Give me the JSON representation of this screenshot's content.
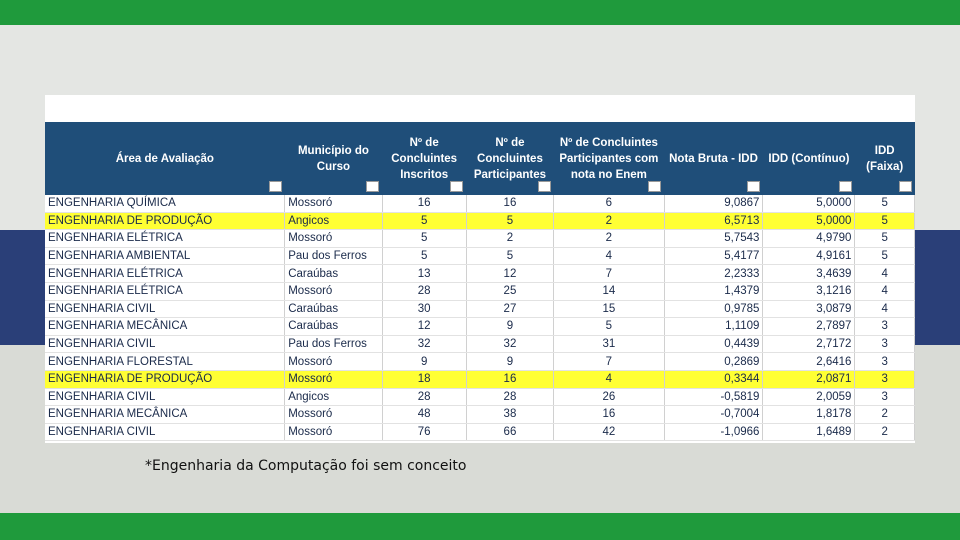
{
  "table": {
    "columns": [
      "Área de Avaliação",
      "Município do\nCurso",
      "Nº de\nConcluintes\nInscritos",
      "Nº de\nConcluintes\nParticipantes",
      "Nº de Concluintes\nParticipantes com\nnota no Enem",
      "Nota Bruta - IDD",
      "IDD (Contínuo)",
      "IDD\n(Faixa)"
    ],
    "rows": [
      [
        "ENGENHARIA QUÍMICA",
        "Mossoró",
        "16",
        "16",
        "6",
        "9,0867",
        "5,0000",
        "5"
      ],
      [
        "ENGENHARIA DE PRODUÇÃO",
        "Angicos",
        "5",
        "5",
        "2",
        "6,5713",
        "5,0000",
        "5"
      ],
      [
        "ENGENHARIA ELÉTRICA",
        "Mossoró",
        "5",
        "2",
        "2",
        "5,7543",
        "4,9790",
        "5"
      ],
      [
        "ENGENHARIA AMBIENTAL",
        "Pau dos Ferros",
        "5",
        "5",
        "4",
        "5,4177",
        "4,9161",
        "5"
      ],
      [
        "ENGENHARIA ELÉTRICA",
        "Caraúbas",
        "13",
        "12",
        "7",
        "2,2333",
        "3,4639",
        "4"
      ],
      [
        "ENGENHARIA ELÉTRICA",
        "Mossoró",
        "28",
        "25",
        "14",
        "1,4379",
        "3,1216",
        "4"
      ],
      [
        "ENGENHARIA CIVIL",
        "Caraúbas",
        "30",
        "27",
        "15",
        "0,9785",
        "3,0879",
        "4"
      ],
      [
        "ENGENHARIA MECÂNICA",
        "Caraúbas",
        "12",
        "9",
        "5",
        "1,1109",
        "2,7897",
        "3"
      ],
      [
        "ENGENHARIA CIVIL",
        "Pau dos Ferros",
        "32",
        "32",
        "31",
        "0,4439",
        "2,7172",
        "3"
      ],
      [
        "ENGENHARIA FLORESTAL",
        "Mossoró",
        "9",
        "9",
        "7",
        "0,2869",
        "2,6416",
        "3"
      ],
      [
        "ENGENHARIA DE PRODUÇÃO",
        "Mossoró",
        "18",
        "16",
        "4",
        "0,3344",
        "2,0871",
        "3"
      ],
      [
        "ENGENHARIA CIVIL",
        "Angicos",
        "28",
        "28",
        "26",
        "-0,5819",
        "2,0059",
        "3"
      ],
      [
        "ENGENHARIA MECÂNICA",
        "Mossoró",
        "48",
        "38",
        "16",
        "-0,7004",
        "1,8178",
        "2"
      ],
      [
        "ENGENHARIA CIVIL",
        "Mossoró",
        "76",
        "66",
        "42",
        "-1,0966",
        "1,6489",
        "2"
      ]
    ],
    "highlighted_rows": [
      1,
      10
    ],
    "highlight_color": "#ffff33",
    "header_color": "#1f4e79"
  },
  "footnote": "*Engenharia da Computação foi sem conceito"
}
